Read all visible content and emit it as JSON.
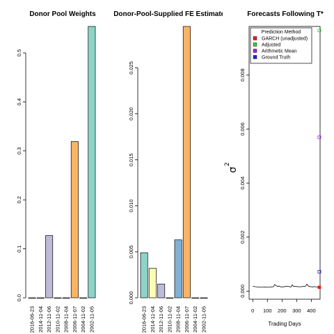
{
  "chart_data": [
    {
      "type": "bar",
      "title": "Donor Pool Weights",
      "categories": [
        "2016-06-23",
        "2014-11-04",
        "2012-11-06",
        "2010-11-02",
        "2008-11-04",
        "2006-11-07",
        "2004-11-02",
        "2002-11-05"
      ],
      "values": [
        0,
        0,
        0.127,
        0,
        0,
        0.319,
        0,
        0.554
      ],
      "colors": [
        "#8dd3c7",
        "#ffffb3",
        "#bebada",
        "#fb8072",
        "#80b1d3",
        "#fdb462",
        "#b3de69",
        "#8dd3c7"
      ],
      "ylim": [
        0,
        0.554
      ],
      "yticks": [
        0.0,
        0.1,
        0.2,
        0.3,
        0.4,
        0.5
      ],
      "ytick_labels": [
        "0.0",
        "0.1",
        "0.2",
        "0.3",
        "0.4",
        "0.5"
      ]
    },
    {
      "type": "bar",
      "title": "Donor-Pool-Supplied FE Estimates",
      "categories": [
        "2016-06-23",
        "2014-11-04",
        "2012-11-06",
        "2010-11-02",
        "2008-11-04",
        "2006-11-07",
        "2004-11-02",
        "2002-11-05"
      ],
      "values": [
        0.0049,
        0.0032,
        0.0015,
        0,
        0.0063,
        0.0295,
        0,
        0
      ],
      "colors": [
        "#8dd3c7",
        "#ffffb3",
        "#bebada",
        "#fb8072",
        "#80b1d3",
        "#fdb462",
        "#b3de69",
        "#8dd3c7"
      ],
      "ylim": [
        0,
        0.0295
      ],
      "yticks": [
        0.0,
        0.005,
        0.01,
        0.015,
        0.02,
        0.025
      ],
      "ytick_labels": [
        "0.000",
        "0.005",
        "0.010",
        "0.015",
        "0.020",
        "0.025"
      ]
    },
    {
      "type": "line",
      "title": "Forecasts Following T*",
      "xlabel": "Trading Days",
      "ylabel": "σ",
      "ylabel_sup": "2",
      "xlim": [
        -25,
        460
      ],
      "ylim": [
        -0.0003,
        0.0098
      ],
      "xticks": [
        0,
        100,
        200,
        300,
        400
      ],
      "yticks": [
        0.0,
        0.002,
        0.004,
        0.006,
        0.008
      ],
      "ytick_labels": [
        "0.000",
        "0.002",
        "0.004",
        "0.006",
        "0.008"
      ],
      "series": [
        {
          "x": [
            0,
            20,
            40,
            60,
            80,
            100,
            120,
            140,
            150,
            160,
            170,
            180,
            190,
            200,
            220,
            240,
            260,
            270,
            280,
            290,
            300,
            320,
            340,
            360,
            370,
            380,
            390,
            400,
            410,
            420,
            430,
            440,
            450,
            455
          ],
          "y": [
            0.00018,
            0.00016,
            0.00015,
            0.00014,
            0.00015,
            0.00014,
            0.00015,
            0.00016,
            0.00024,
            0.0002,
            0.00017,
            0.00019,
            0.00016,
            0.00015,
            0.00017,
            0.00018,
            0.00015,
            0.00023,
            0.00017,
            0.00018,
            0.00017,
            0.00016,
            0.00017,
            0.00018,
            0.00026,
            0.00019,
            0.00017,
            0.00016,
            0.00015,
            0.00017,
            0.00016,
            0.00015,
            0.00016,
            0.00015
          ],
          "color": "#000000"
        }
      ],
      "points": [
        {
          "x": 455,
          "y": 0.00014,
          "color": "#e41a1c",
          "shape": "filled-square"
        },
        {
          "x": 455,
          "y": 0.00965,
          "color": "#33cc33",
          "shape": "open-square"
        },
        {
          "x": 455,
          "y": 0.0057,
          "color": "#a020f0",
          "shape": "open-square"
        },
        {
          "x": 455,
          "y": 0.00072,
          "color": "#2020e0",
          "shape": "open-square"
        }
      ],
      "legend": {
        "title": "Prediction Method",
        "placement": "top-left",
        "entries": [
          {
            "label": "GARCH (unadjusted)",
            "color": "#e41a1c"
          },
          {
            "label": "Adjusted",
            "color": "#33cc33"
          },
          {
            "label": "Arithmetic Mean",
            "color": "#a020f0"
          },
          {
            "label": "Ground Truth",
            "color": "#2020e0"
          }
        ]
      }
    }
  ]
}
